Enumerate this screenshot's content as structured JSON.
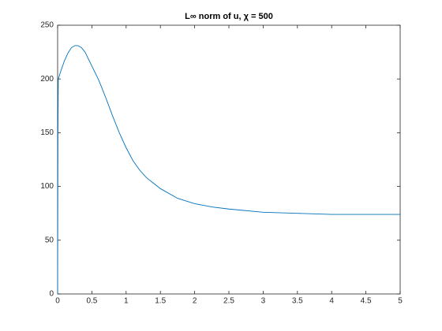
{
  "chart_data": {
    "type": "line",
    "title": "L∞ norm of u, χ = 500",
    "x": [
      0,
      0.005,
      0.01,
      0.05,
      0.1,
      0.15,
      0.2,
      0.25,
      0.3,
      0.35,
      0.4,
      0.5,
      0.6,
      0.7,
      0.8,
      0.9,
      1.0,
      1.1,
      1.2,
      1.3,
      1.4,
      1.5,
      1.75,
      2,
      2.25,
      2.5,
      3,
      3.5,
      4,
      4.5,
      5
    ],
    "series": [
      {
        "color": "#0072bd",
        "values": [
          0,
          150,
          200,
          208,
          217,
          224,
          229,
          231,
          231,
          229,
          225,
          212,
          199,
          183,
          166,
          150,
          136,
          124,
          115,
          108,
          103,
          98,
          89,
          84,
          81,
          79,
          76,
          75,
          74,
          74,
          74
        ]
      }
    ],
    "xlim": [
      0,
      5
    ],
    "xticks": [
      0,
      0.5,
      1,
      1.5,
      2,
      2.5,
      3,
      3.5,
      4,
      4.5,
      5
    ],
    "ylim": [
      0,
      250
    ],
    "yticks": [
      0,
      50,
      100,
      150,
      200,
      250
    ]
  }
}
